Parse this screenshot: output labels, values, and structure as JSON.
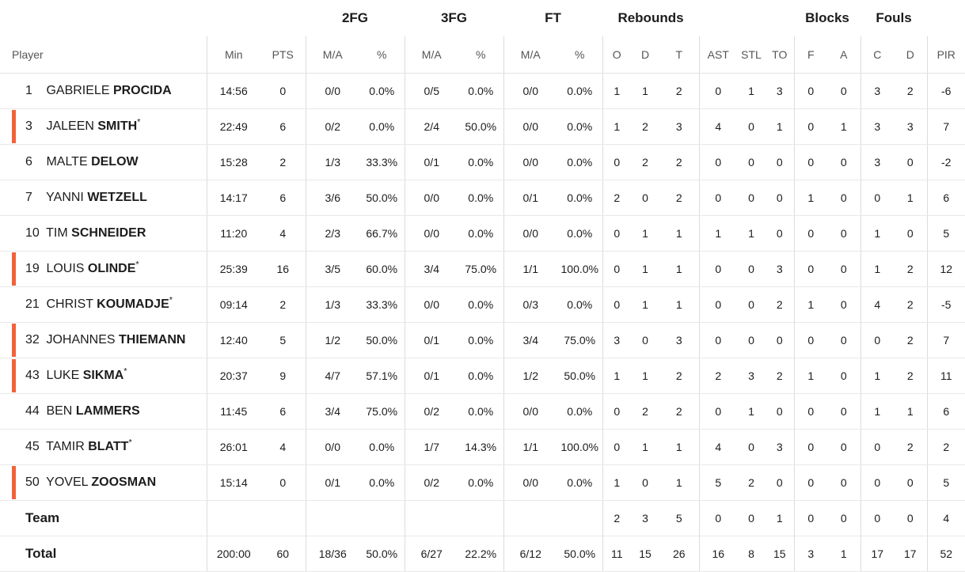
{
  "groups": {
    "fg2": "2FG",
    "fg3": "3FG",
    "ft": "FT",
    "rebounds": "Rebounds",
    "blocks": "Blocks",
    "fouls": "Fouls"
  },
  "columns": {
    "player": "Player",
    "min": "Min",
    "pts": "PTS",
    "fg2_ma": "M/A",
    "fg2_pct": "%",
    "fg3_ma": "M/A",
    "fg3_pct": "%",
    "ft_ma": "M/A",
    "ft_pct": "%",
    "reb_o": "O",
    "reb_d": "D",
    "reb_t": "T",
    "ast": "AST",
    "stl": "STL",
    "to": "TO",
    "blk_f": "F",
    "blk_a": "A",
    "foul_c": "C",
    "foul_d": "D",
    "pir": "PIR"
  },
  "starter_color": "#f2623a",
  "players": [
    {
      "num": "1",
      "first": "GABRIELE",
      "last": "PROCIDA",
      "star": "",
      "starter": false,
      "min": "14:56",
      "pts": "0",
      "fg2_ma": "0/0",
      "fg2_pct": "0.0%",
      "fg3_ma": "0/5",
      "fg3_pct": "0.0%",
      "ft_ma": "0/0",
      "ft_pct": "0.0%",
      "o": "1",
      "d": "1",
      "t": "2",
      "ast": "0",
      "stl": "1",
      "to": "3",
      "bf": "0",
      "ba": "0",
      "fc": "3",
      "fd": "2",
      "pir": "-6"
    },
    {
      "num": "3",
      "first": "JALEEN",
      "last": "SMITH",
      "star": "*",
      "starter": true,
      "min": "22:49",
      "pts": "6",
      "fg2_ma": "0/2",
      "fg2_pct": "0.0%",
      "fg3_ma": "2/4",
      "fg3_pct": "50.0%",
      "ft_ma": "0/0",
      "ft_pct": "0.0%",
      "o": "1",
      "d": "2",
      "t": "3",
      "ast": "4",
      "stl": "0",
      "to": "1",
      "bf": "0",
      "ba": "1",
      "fc": "3",
      "fd": "3",
      "pir": "7"
    },
    {
      "num": "6",
      "first": "MALTE",
      "last": "DELOW",
      "star": "",
      "starter": false,
      "min": "15:28",
      "pts": "2",
      "fg2_ma": "1/3",
      "fg2_pct": "33.3%",
      "fg3_ma": "0/1",
      "fg3_pct": "0.0%",
      "ft_ma": "0/0",
      "ft_pct": "0.0%",
      "o": "0",
      "d": "2",
      "t": "2",
      "ast": "0",
      "stl": "0",
      "to": "0",
      "bf": "0",
      "ba": "0",
      "fc": "3",
      "fd": "0",
      "pir": "-2"
    },
    {
      "num": "7",
      "first": "YANNI",
      "last": "WETZELL",
      "star": "",
      "starter": false,
      "min": "14:17",
      "pts": "6",
      "fg2_ma": "3/6",
      "fg2_pct": "50.0%",
      "fg3_ma": "0/0",
      "fg3_pct": "0.0%",
      "ft_ma": "0/1",
      "ft_pct": "0.0%",
      "o": "2",
      "d": "0",
      "t": "2",
      "ast": "0",
      "stl": "0",
      "to": "0",
      "bf": "1",
      "ba": "0",
      "fc": "0",
      "fd": "1",
      "pir": "6"
    },
    {
      "num": "10",
      "first": "TIM",
      "last": "SCHNEIDER",
      "star": "",
      "starter": false,
      "min": "11:20",
      "pts": "4",
      "fg2_ma": "2/3",
      "fg2_pct": "66.7%",
      "fg3_ma": "0/0",
      "fg3_pct": "0.0%",
      "ft_ma": "0/0",
      "ft_pct": "0.0%",
      "o": "0",
      "d": "1",
      "t": "1",
      "ast": "1",
      "stl": "1",
      "to": "0",
      "bf": "0",
      "ba": "0",
      "fc": "1",
      "fd": "0",
      "pir": "5"
    },
    {
      "num": "19",
      "first": "LOUIS",
      "last": "OLINDE",
      "star": "*",
      "starter": true,
      "min": "25:39",
      "pts": "16",
      "fg2_ma": "3/5",
      "fg2_pct": "60.0%",
      "fg3_ma": "3/4",
      "fg3_pct": "75.0%",
      "ft_ma": "1/1",
      "ft_pct": "100.0%",
      "o": "0",
      "d": "1",
      "t": "1",
      "ast": "0",
      "stl": "0",
      "to": "3",
      "bf": "0",
      "ba": "0",
      "fc": "1",
      "fd": "2",
      "pir": "12"
    },
    {
      "num": "21",
      "first": "CHRIST",
      "last": "KOUMADJE",
      "star": "*",
      "starter": false,
      "min": "09:14",
      "pts": "2",
      "fg2_ma": "1/3",
      "fg2_pct": "33.3%",
      "fg3_ma": "0/0",
      "fg3_pct": "0.0%",
      "ft_ma": "0/3",
      "ft_pct": "0.0%",
      "o": "0",
      "d": "1",
      "t": "1",
      "ast": "0",
      "stl": "0",
      "to": "2",
      "bf": "1",
      "ba": "0",
      "fc": "4",
      "fd": "2",
      "pir": "-5"
    },
    {
      "num": "32",
      "first": "JOHANNES",
      "last": "THIEMANN",
      "star": "",
      "starter": true,
      "min": "12:40",
      "pts": "5",
      "fg2_ma": "1/2",
      "fg2_pct": "50.0%",
      "fg3_ma": "0/1",
      "fg3_pct": "0.0%",
      "ft_ma": "3/4",
      "ft_pct": "75.0%",
      "o": "3",
      "d": "0",
      "t": "3",
      "ast": "0",
      "stl": "0",
      "to": "0",
      "bf": "0",
      "ba": "0",
      "fc": "0",
      "fd": "2",
      "pir": "7"
    },
    {
      "num": "43",
      "first": "LUKE",
      "last": "SIKMA",
      "star": "*",
      "starter": true,
      "min": "20:37",
      "pts": "9",
      "fg2_ma": "4/7",
      "fg2_pct": "57.1%",
      "fg3_ma": "0/1",
      "fg3_pct": "0.0%",
      "ft_ma": "1/2",
      "ft_pct": "50.0%",
      "o": "1",
      "d": "1",
      "t": "2",
      "ast": "2",
      "stl": "3",
      "to": "2",
      "bf": "1",
      "ba": "0",
      "fc": "1",
      "fd": "2",
      "pir": "11"
    },
    {
      "num": "44",
      "first": "BEN",
      "last": "LAMMERS",
      "star": "",
      "starter": false,
      "min": "11:45",
      "pts": "6",
      "fg2_ma": "3/4",
      "fg2_pct": "75.0%",
      "fg3_ma": "0/2",
      "fg3_pct": "0.0%",
      "ft_ma": "0/0",
      "ft_pct": "0.0%",
      "o": "0",
      "d": "2",
      "t": "2",
      "ast": "0",
      "stl": "1",
      "to": "0",
      "bf": "0",
      "ba": "0",
      "fc": "1",
      "fd": "1",
      "pir": "6"
    },
    {
      "num": "45",
      "first": "TAMIR",
      "last": "BLATT",
      "star": "*",
      "starter": false,
      "min": "26:01",
      "pts": "4",
      "fg2_ma": "0/0",
      "fg2_pct": "0.0%",
      "fg3_ma": "1/7",
      "fg3_pct": "14.3%",
      "ft_ma": "1/1",
      "ft_pct": "100.0%",
      "o": "0",
      "d": "1",
      "t": "1",
      "ast": "4",
      "stl": "0",
      "to": "3",
      "bf": "0",
      "ba": "0",
      "fc": "0",
      "fd": "2",
      "pir": "2"
    },
    {
      "num": "50",
      "first": "YOVEL",
      "last": "ZOOSMAN",
      "star": "",
      "starter": true,
      "min": "15:14",
      "pts": "0",
      "fg2_ma": "0/1",
      "fg2_pct": "0.0%",
      "fg3_ma": "0/2",
      "fg3_pct": "0.0%",
      "ft_ma": "0/0",
      "ft_pct": "0.0%",
      "o": "1",
      "d": "0",
      "t": "1",
      "ast": "5",
      "stl": "2",
      "to": "0",
      "bf": "0",
      "ba": "0",
      "fc": "0",
      "fd": "0",
      "pir": "5"
    }
  ],
  "team": {
    "label": "Team",
    "min": "",
    "pts": "",
    "fg2_ma": "",
    "fg2_pct": "",
    "fg3_ma": "",
    "fg3_pct": "",
    "ft_ma": "",
    "ft_pct": "",
    "o": "2",
    "d": "3",
    "t": "5",
    "ast": "0",
    "stl": "0",
    "to": "1",
    "bf": "0",
    "ba": "0",
    "fc": "0",
    "fd": "0",
    "pir": "4"
  },
  "total": {
    "label": "Total",
    "min": "200:00",
    "pts": "60",
    "fg2_ma": "18/36",
    "fg2_pct": "50.0%",
    "fg3_ma": "6/27",
    "fg3_pct": "22.2%",
    "ft_ma": "6/12",
    "ft_pct": "50.0%",
    "o": "11",
    "d": "15",
    "t": "26",
    "ast": "16",
    "stl": "8",
    "to": "15",
    "bf": "3",
    "ba": "1",
    "fc": "17",
    "fd": "17",
    "pir": "52"
  }
}
